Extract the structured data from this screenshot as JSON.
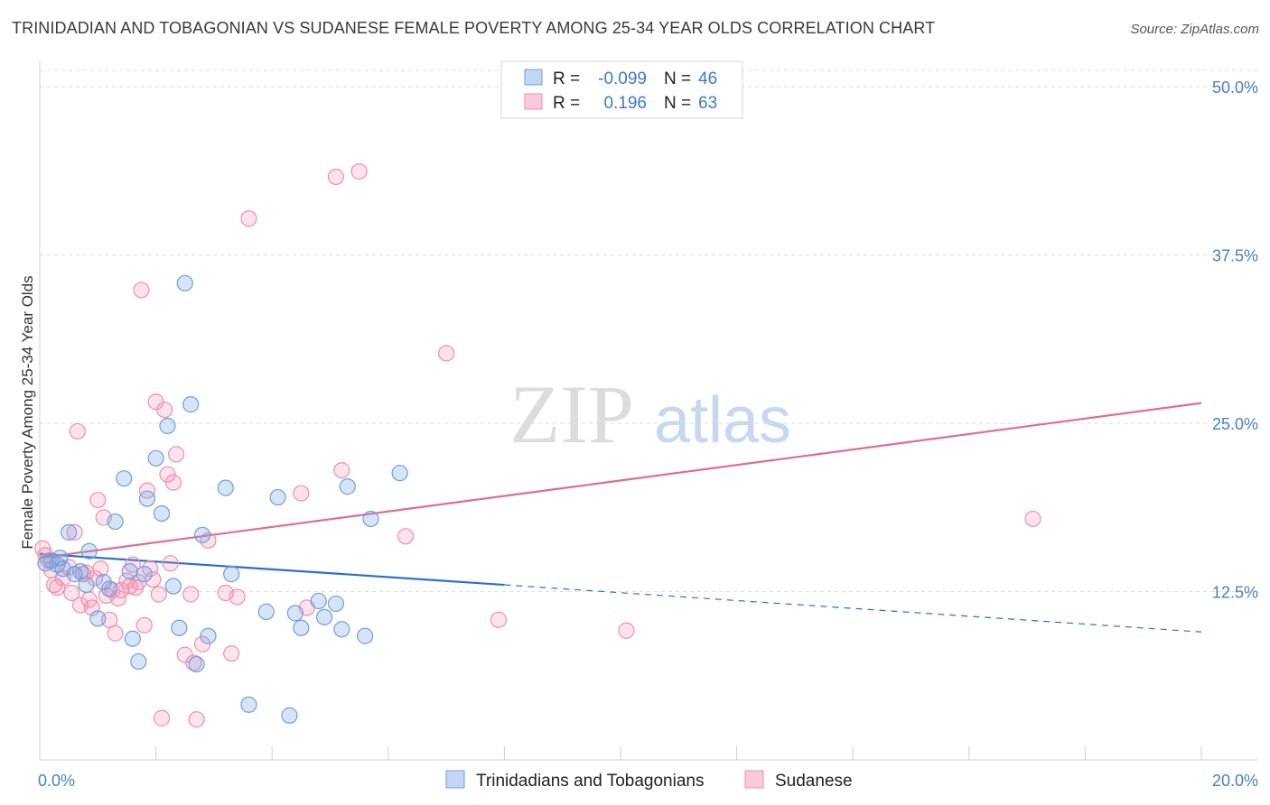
{
  "header": {
    "title": "TRINIDADIAN AND TOBAGONIAN VS SUDANESE FEMALE POVERTY AMONG 25-34 YEAR OLDS CORRELATION CHART",
    "source": "Source: ZipAtlas.com"
  },
  "watermark": {
    "zip": "ZIP",
    "atlas": "atlas"
  },
  "legend": {
    "r_label": "R =",
    "n_label": "N =",
    "series": [
      {
        "name": "Trinidadians and Tobagonians",
        "r": "-0.099",
        "n": "46"
      },
      {
        "name": "Sudanese",
        "r": "0.196",
        "n": "63"
      }
    ]
  },
  "chart_data": {
    "type": "scatter",
    "title": "TRINIDADIAN AND TOBAGONIAN VS SUDANESE FEMALE POVERTY AMONG 25-34 YEAR OLDS CORRELATION CHART",
    "xlabel": "",
    "ylabel": "Female Poverty Among 25-34 Year Olds",
    "xlim": [
      0,
      20
    ],
    "ylim": [
      0,
      50
    ],
    "y_ticks": [
      12.5,
      25,
      37.5,
      50
    ],
    "y_tick_labels": [
      "12.5%",
      "25.0%",
      "37.5%",
      "50.0%"
    ],
    "x_tick_labels": [
      "0.0%",
      "20.0%"
    ],
    "grid": true,
    "legend_position": "top-center",
    "series": [
      {
        "name": "Trinidadians and Tobagonians",
        "color": "#6f9fe0",
        "line_color": "#2a6fcd",
        "trend": {
          "x0": 0,
          "y0": 15.3,
          "x1": 8.0,
          "y1": 13.0,
          "dash_x1": 20,
          "dash_y1": 9.5
        },
        "points": [
          [
            0.1,
            14.6
          ],
          [
            0.2,
            14.8
          ],
          [
            0.3,
            14.5
          ],
          [
            0.35,
            15.0
          ],
          [
            0.4,
            14.2
          ],
          [
            0.5,
            16.9
          ],
          [
            0.6,
            13.8
          ],
          [
            0.7,
            14.0
          ],
          [
            0.8,
            13.0
          ],
          [
            0.85,
            15.5
          ],
          [
            1.0,
            10.5
          ],
          [
            1.1,
            13.2
          ],
          [
            1.2,
            12.7
          ],
          [
            1.3,
            17.7
          ],
          [
            1.45,
            20.9
          ],
          [
            1.55,
            14.0
          ],
          [
            1.6,
            9.0
          ],
          [
            1.7,
            7.3
          ],
          [
            1.8,
            13.8
          ],
          [
            1.85,
            19.4
          ],
          [
            2.0,
            22.4
          ],
          [
            2.1,
            18.3
          ],
          [
            2.2,
            24.8
          ],
          [
            2.3,
            12.9
          ],
          [
            2.4,
            9.8
          ],
          [
            2.5,
            35.4
          ],
          [
            2.6,
            26.4
          ],
          [
            2.7,
            7.1
          ],
          [
            2.8,
            16.7
          ],
          [
            2.9,
            9.2
          ],
          [
            3.2,
            20.2
          ],
          [
            3.3,
            13.8
          ],
          [
            3.6,
            4.1
          ],
          [
            3.9,
            11.0
          ],
          [
            4.1,
            19.5
          ],
          [
            4.3,
            3.3
          ],
          [
            4.4,
            10.9
          ],
          [
            4.5,
            9.8
          ],
          [
            4.8,
            11.8
          ],
          [
            4.9,
            10.6
          ],
          [
            5.1,
            11.6
          ],
          [
            5.2,
            9.7
          ],
          [
            5.3,
            20.3
          ],
          [
            5.6,
            9.2
          ],
          [
            5.7,
            17.9
          ],
          [
            6.2,
            21.3
          ]
        ]
      },
      {
        "name": "Sudanese",
        "color": "#f08fb0",
        "line_color": "#e06c96",
        "trend": {
          "x0": 0,
          "y0": 15.0,
          "x1": 20,
          "y1": 26.5
        },
        "points": [
          [
            0.05,
            15.7
          ],
          [
            0.1,
            15.2
          ],
          [
            0.15,
            14.8
          ],
          [
            0.2,
            14.1
          ],
          [
            0.25,
            13.0
          ],
          [
            0.3,
            12.8
          ],
          [
            0.4,
            13.5
          ],
          [
            0.5,
            14.3
          ],
          [
            0.55,
            12.4
          ],
          [
            0.6,
            16.9
          ],
          [
            0.65,
            24.4
          ],
          [
            0.7,
            11.5
          ],
          [
            0.75,
            13.8
          ],
          [
            0.8,
            13.9
          ],
          [
            0.85,
            11.9
          ],
          [
            0.9,
            11.3
          ],
          [
            0.95,
            13.5
          ],
          [
            1.0,
            19.3
          ],
          [
            1.05,
            14.2
          ],
          [
            1.1,
            18.0
          ],
          [
            1.15,
            12.2
          ],
          [
            1.2,
            10.4
          ],
          [
            1.25,
            12.6
          ],
          [
            1.3,
            9.4
          ],
          [
            1.35,
            12.0
          ],
          [
            1.4,
            12.6
          ],
          [
            1.5,
            13.3
          ],
          [
            1.55,
            12.9
          ],
          [
            1.6,
            14.5
          ],
          [
            1.65,
            12.8
          ],
          [
            1.7,
            13.2
          ],
          [
            1.75,
            34.9
          ],
          [
            1.8,
            10.0
          ],
          [
            1.85,
            20.0
          ],
          [
            1.9,
            14.2
          ],
          [
            1.95,
            13.4
          ],
          [
            2.0,
            26.6
          ],
          [
            2.05,
            12.3
          ],
          [
            2.1,
            3.1
          ],
          [
            2.15,
            26.0
          ],
          [
            2.2,
            21.2
          ],
          [
            2.25,
            14.6
          ],
          [
            2.3,
            20.6
          ],
          [
            2.35,
            22.7
          ],
          [
            2.5,
            7.8
          ],
          [
            2.6,
            12.3
          ],
          [
            2.65,
            7.2
          ],
          [
            2.7,
            3.0
          ],
          [
            2.8,
            8.6
          ],
          [
            2.9,
            16.3
          ],
          [
            3.2,
            12.4
          ],
          [
            3.3,
            7.9
          ],
          [
            3.4,
            12.1
          ],
          [
            3.6,
            40.2
          ],
          [
            4.5,
            19.8
          ],
          [
            4.6,
            11.3
          ],
          [
            5.1,
            43.3
          ],
          [
            5.2,
            21.5
          ],
          [
            5.5,
            43.7
          ],
          [
            6.3,
            16.6
          ],
          [
            7.0,
            30.2
          ],
          [
            7.9,
            10.4
          ],
          [
            10.1,
            9.6
          ],
          [
            17.1,
            17.9
          ]
        ]
      }
    ]
  }
}
